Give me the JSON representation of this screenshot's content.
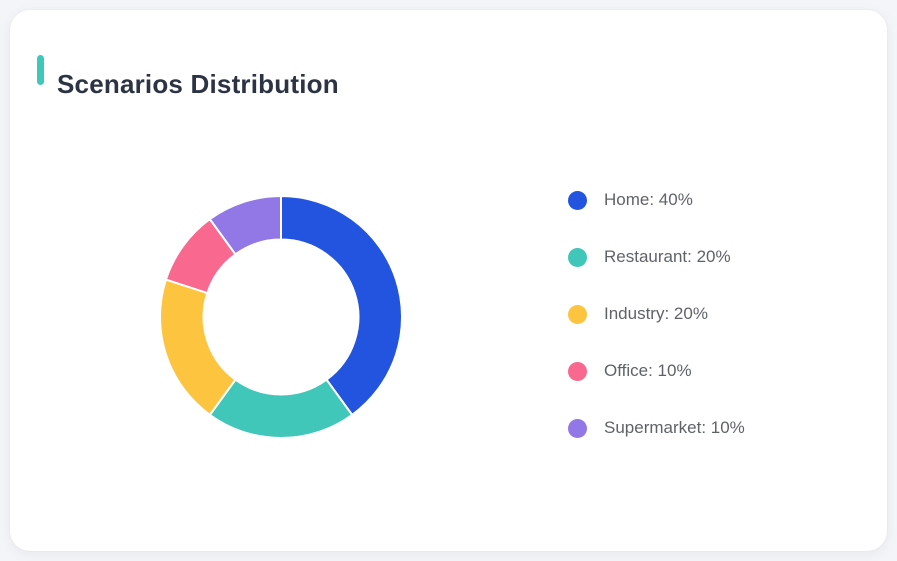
{
  "page": {
    "background_color": "#f4f5f8",
    "card_background_color": "#ffffff"
  },
  "header": {
    "title": "Scenarios Distribution",
    "title_color": "#2c3344",
    "accent_color": "#3ec8ba"
  },
  "legend": {
    "position": "right",
    "text_color": "#5f6368"
  },
  "chart_data": {
    "type": "pie",
    "subtype": "donut",
    "title": "Scenarios Distribution",
    "labels": [
      "Home",
      "Restaurant",
      "Industry",
      "Office",
      "Supermarket"
    ],
    "values": [
      40,
      20,
      20,
      10,
      10
    ],
    "unit": "%",
    "colors": [
      "#2254df",
      "#41c6ba",
      "#fdc43f",
      "#f8688f",
      "#9178e6"
    ],
    "legend_labels": [
      "Home: 40%",
      "Restaurant: 20%",
      "Industry: 20%",
      "Office: 10%",
      "Supermarket: 10%"
    ],
    "legend_position": "right",
    "direction": "clockwise",
    "start_angle_deg": 0,
    "inner_radius_ratio": 0.64,
    "separator_color": "#ffffff"
  }
}
